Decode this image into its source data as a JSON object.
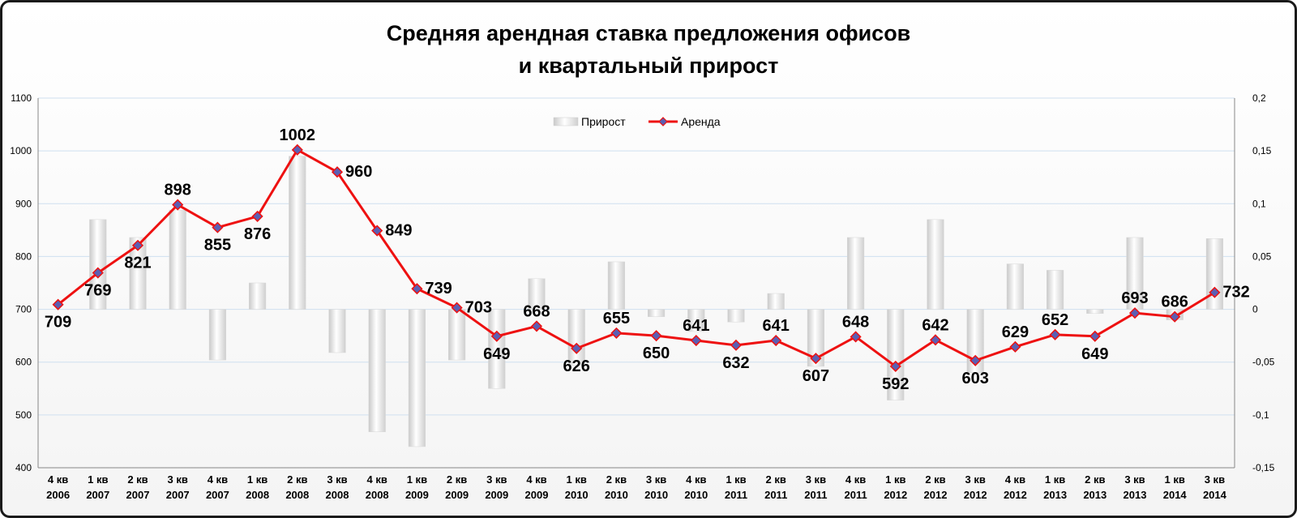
{
  "chart_data": {
    "type": "bar+line",
    "title": [
      "Средняя арендная ставка предложения офисов",
      "и квартальный прирост"
    ],
    "categories": [
      [
        "4 кв",
        "2006"
      ],
      [
        "1 кв",
        "2007"
      ],
      [
        "2 кв",
        "2007"
      ],
      [
        "3 кв",
        "2007"
      ],
      [
        "4 кв",
        "2007"
      ],
      [
        "1 кв",
        "2008"
      ],
      [
        "2 кв",
        "2008"
      ],
      [
        "3 кв",
        "2008"
      ],
      [
        "4 кв",
        "2008"
      ],
      [
        "1 кв",
        "2009"
      ],
      [
        "2 кв",
        "2009"
      ],
      [
        "3 кв",
        "2009"
      ],
      [
        "4 кв",
        "2009"
      ],
      [
        "1 кв",
        "2010"
      ],
      [
        "2 кв",
        "2010"
      ],
      [
        "3 кв",
        "2010"
      ],
      [
        "4 кв",
        "2010"
      ],
      [
        "1 кв",
        "2011"
      ],
      [
        "2 кв",
        "2011"
      ],
      [
        "3 кв",
        "2011"
      ],
      [
        "4 кв",
        "2011"
      ],
      [
        "1 кв",
        "2012"
      ],
      [
        "2 кв",
        "2012"
      ],
      [
        "3 кв",
        "2012"
      ],
      [
        "4 кв",
        "2012"
      ],
      [
        "1 кв",
        "2013"
      ],
      [
        "2 кв",
        "2013"
      ],
      [
        "3 кв",
        "2013"
      ],
      [
        "1 кв",
        "2014"
      ],
      [
        "3 кв",
        "2014"
      ]
    ],
    "series": [
      {
        "name": "Прирост",
        "type": "bar",
        "axis": "right",
        "values": [
          0,
          0.085,
          0.068,
          0.094,
          -0.048,
          0.025,
          0.145,
          -0.041,
          -0.116,
          -0.13,
          -0.048,
          -0.075,
          0.029,
          -0.053,
          0.045,
          -0.007,
          -0.021,
          -0.012,
          0.015,
          -0.054,
          0.068,
          -0.086,
          0.085,
          -0.06,
          0.043,
          0.037,
          -0.004,
          0.068,
          -0.01,
          0.067
        ]
      },
      {
        "name": "Аренда",
        "type": "line",
        "axis": "left",
        "values": [
          709,
          769,
          821,
          898,
          855,
          876,
          1002,
          960,
          849,
          739,
          703,
          649,
          668,
          626,
          655,
          650,
          641,
          632,
          641,
          607,
          648,
          592,
          642,
          603,
          629,
          652,
          649,
          693,
          686,
          732
        ]
      }
    ],
    "left_axis": {
      "ylim": [
        400,
        1100
      ],
      "ticks": [
        "400",
        "500",
        "600",
        "700",
        "800",
        "900",
        "1000",
        "1100"
      ]
    },
    "right_axis": {
      "ylim": [
        -0.15,
        0.2
      ],
      "ticks": [
        "-0,15",
        "-0,1",
        "-0,05",
        "0",
        "0,05",
        "0,1",
        "0,15",
        "0,2"
      ]
    },
    "grid": true,
    "legend_position": "top-center",
    "colors": {
      "line": "#ee1111",
      "marker_fill": "#5b5fb3",
      "bar": "#e4e4e4",
      "grid": "#cfe0f0"
    }
  }
}
